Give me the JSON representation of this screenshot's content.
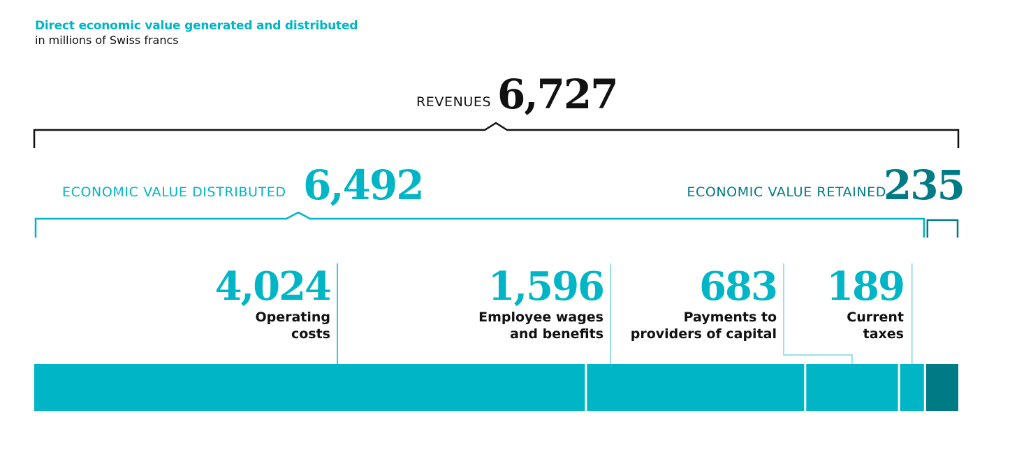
{
  "header": {
    "title": "Direct economic value generated and distributed",
    "subtitle": "in millions of Swiss francs"
  },
  "colors": {
    "accent": "#00b5c6",
    "dark_accent": "#007a85",
    "connector": "#7fd3dd",
    "text": "#111111"
  },
  "chart_data": {
    "type": "bar",
    "orientation": "horizontal-stacked",
    "title": "Direct economic value generated and distributed",
    "subtitle": "in millions of Swiss francs",
    "unit": "millions of Swiss francs",
    "total": {
      "label": "REVENUES",
      "value": 6727,
      "display": "6,727"
    },
    "groups": [
      {
        "label": "ECONOMIC VALUE DISTRIBUTED",
        "value": 6492,
        "display": "6,492",
        "color": "#00b5c6"
      },
      {
        "label": "ECONOMIC VALUE RETAINED",
        "value": 235,
        "display": "235",
        "color": "#007a85"
      }
    ],
    "categories": [
      "Operating costs",
      "Employee wages and benefits",
      "Payments to providers of capital",
      "Current taxes",
      "Economic value retained"
    ],
    "series": [
      {
        "name": "Operating costs",
        "label_lines": [
          "Operating",
          "costs"
        ],
        "value": 4024,
        "display": "4,024",
        "group": "distributed",
        "color": "#00b5c6"
      },
      {
        "name": "Employee wages and benefits",
        "label_lines": [
          "Employee wages",
          "and benefits"
        ],
        "value": 1596,
        "display": "1,596",
        "group": "distributed",
        "color": "#00b5c6"
      },
      {
        "name": "Payments to providers of capital",
        "label_lines": [
          "Payments to",
          "providers of capital"
        ],
        "value": 683,
        "display": "683",
        "group": "distributed",
        "color": "#00b5c6"
      },
      {
        "name": "Current taxes",
        "label_lines": [
          "Current",
          "taxes"
        ],
        "value": 189,
        "display": "189",
        "group": "distributed",
        "color": "#00b5c6"
      },
      {
        "name": "Economic value retained",
        "value": 235,
        "group": "retained",
        "color": "#007a85"
      }
    ],
    "xlim": [
      0,
      6727
    ],
    "grid": false,
    "legend": "none"
  }
}
